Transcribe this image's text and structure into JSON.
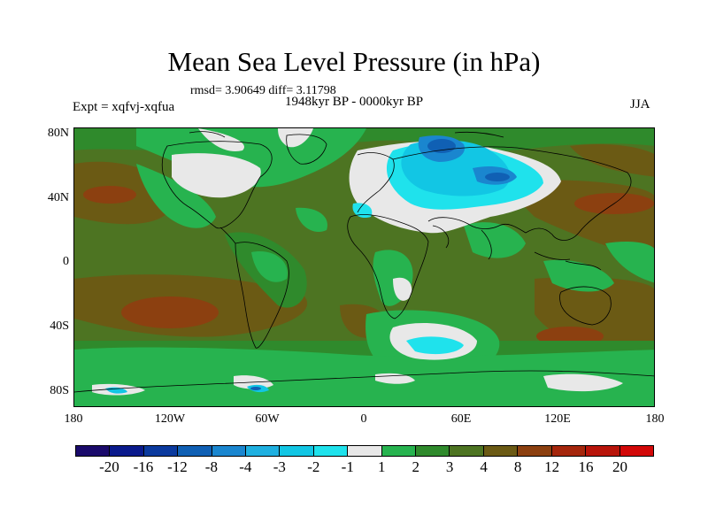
{
  "title": "Mean Sea Level Pressure (in hPa)",
  "stats": "rmsd= 3.90649 diff= 3.11798",
  "period": "1948kyr BP - 0000kyr BP",
  "experiment": "Expt = xqfvj-xqfua",
  "season": "JJA",
  "lat_labels": [
    "80N",
    "40N",
    "0",
    "40S",
    "80S"
  ],
  "lon_labels": [
    "180",
    "120W",
    "60W",
    "0",
    "60E",
    "120E",
    "180"
  ],
  "colorbar": {
    "labels": [
      "-20",
      "-16",
      "-12",
      "-8",
      "-4",
      "-3",
      "-2",
      "-1",
      "1",
      "2",
      "3",
      "4",
      "8",
      "12",
      "16",
      "20"
    ],
    "colors": [
      "#1a0a6b",
      "#0a1a8c",
      "#0b3a9e",
      "#1060b4",
      "#1a86cf",
      "#1fb0e0",
      "#12c6e4",
      "#1fe2ec",
      "#e8e8e8",
      "#27b34f",
      "#2f8a2c",
      "#4d7422",
      "#6b5a14",
      "#8c4010",
      "#a5260c",
      "#b8140a",
      "#d20808"
    ]
  }
}
